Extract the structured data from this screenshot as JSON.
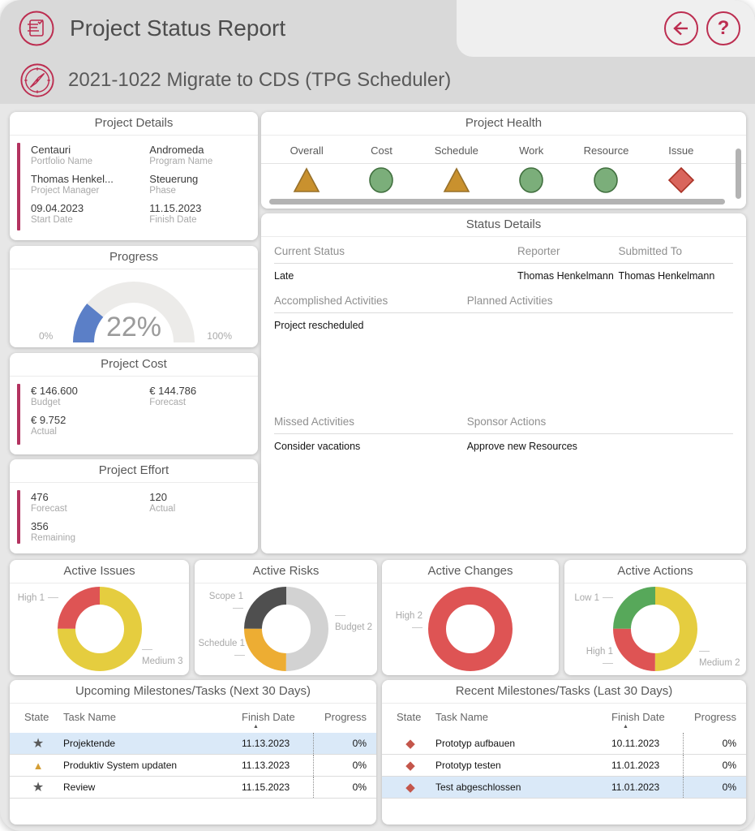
{
  "app": {
    "title": "Project Status Report",
    "subtitle": "2021-1022 Migrate to CDS (TPG Scheduler)",
    "accent_color": "#BC2D50"
  },
  "buttons": {
    "back": "back",
    "help_glyph": "?"
  },
  "cards": {
    "project_details": {
      "title": "Project Details",
      "fields": [
        {
          "value": "Centauri",
          "label": "Portfolio Name"
        },
        {
          "value": "Andromeda",
          "label": "Program Name"
        },
        {
          "value": "Thomas Henkel...",
          "label": "Project Manager"
        },
        {
          "value": "Steuerung",
          "label": "Phase"
        },
        {
          "value": "09.04.2023",
          "label": "Start Date"
        },
        {
          "value": "11.15.2023",
          "label": "Finish Date"
        }
      ]
    },
    "project_health": {
      "title": "Project Health",
      "items": [
        {
          "label": "Overall",
          "shape": "triangle"
        },
        {
          "label": "Cost",
          "shape": "circle"
        },
        {
          "label": "Schedule",
          "shape": "triangle"
        },
        {
          "label": "Work",
          "shape": "circle"
        },
        {
          "label": "Resource",
          "shape": "circle"
        },
        {
          "label": "Issue",
          "shape": "diamond"
        }
      ],
      "shape_colors": {
        "triangle": {
          "fill": "#C9912E",
          "stroke": "#97702A"
        },
        "circle": {
          "fill": "#7BAE7A",
          "stroke": "#41703F"
        },
        "diamond": {
          "fill": "#D9655C",
          "stroke": "#A93226"
        }
      }
    },
    "progress": {
      "title": "Progress",
      "percent": 22,
      "display": "22%",
      "min": "0%",
      "max": "100%",
      "fill_color": "#5B7FC7",
      "track_color": "#ECEBE9"
    },
    "project_cost": {
      "title": "Project Cost",
      "fields": [
        {
          "value": "€ 146.600",
          "label": "Budget"
        },
        {
          "value": "€ 144.786",
          "label": "Forecast"
        },
        {
          "value": "€ 9.752",
          "label": "Actual"
        }
      ]
    },
    "project_effort": {
      "title": "Project Effort",
      "fields": [
        {
          "value": "476",
          "label": "Forecast"
        },
        {
          "value": "120",
          "label": "Actual"
        },
        {
          "value": "356",
          "label": "Remaining"
        }
      ]
    },
    "status_details": {
      "title": "Status Details",
      "sections": [
        {
          "headers": [
            "Current Status",
            "Reporter",
            "Submitted To"
          ],
          "values": [
            "Late",
            "Thomas Henkelmann",
            "Thomas Henkelmann"
          ]
        },
        {
          "headers": [
            "Accomplished Activities",
            "Planned Activities"
          ],
          "values": [
            "Project rescheduled",
            ""
          ]
        },
        {
          "headers": [
            "Missed Activities",
            "Sponsor Actions"
          ],
          "values": [
            "Consider vacations",
            "Approve new Resources"
          ]
        }
      ]
    }
  },
  "donuts": [
    {
      "title": "Active Issues",
      "slices": [
        {
          "label": "Medium",
          "value": 3,
          "color": "#E5CD3F"
        },
        {
          "label": "High",
          "value": 1,
          "color": "#DE5454"
        }
      ],
      "callouts": [
        {
          "text": "High 1",
          "pos": "tl"
        },
        {
          "text": "Medium 3",
          "pos": "br"
        }
      ]
    },
    {
      "title": "Active Risks",
      "slices": [
        {
          "label": "Budget",
          "value": 2,
          "color": "#D2D2D2"
        },
        {
          "label": "Schedule",
          "value": 1,
          "color": "#EDAD33"
        },
        {
          "label": "Scope",
          "value": 1,
          "color": "#4F4F4F"
        }
      ],
      "callouts": [
        {
          "text": "Scope 1",
          "pos": "tl"
        },
        {
          "text": "Budget 2",
          "pos": "r"
        },
        {
          "text": "Schedule 1",
          "pos": "bl"
        }
      ]
    },
    {
      "title": "Active Changes",
      "slices": [
        {
          "label": "High",
          "value": 2,
          "color": "#DE5454"
        }
      ],
      "callouts": [
        {
          "text": "High 2",
          "pos": "l"
        }
      ]
    },
    {
      "title": "Active Actions",
      "slices": [
        {
          "label": "Medium",
          "value": 2,
          "color": "#E5CD3F"
        },
        {
          "label": "High",
          "value": 1,
          "color": "#DE5454"
        },
        {
          "label": "Low",
          "value": 1,
          "color": "#57A85A"
        }
      ],
      "callouts": [
        {
          "text": "Low 1",
          "pos": "tl"
        },
        {
          "text": "High 1",
          "pos": "bl"
        },
        {
          "text": "Medium 2",
          "pos": "br"
        }
      ]
    }
  ],
  "state_icons": {
    "star": {
      "glyph": "★",
      "color": "#595959"
    },
    "triangle": {
      "glyph": "▲",
      "color": "#D49E35"
    },
    "diamond": {
      "glyph": "◆",
      "color": "#C4564B"
    }
  },
  "tables": {
    "sort_glyph": "▲",
    "upcoming": {
      "title": "Upcoming Milestones/Tasks (Next 30 Days)",
      "columns": [
        "State",
        "Task Name",
        "Finish Date",
        "Progress"
      ],
      "rows": [
        {
          "state": "star",
          "task": "Projektende",
          "finish": "11.13.2023",
          "progress": "0%",
          "highlighted": true
        },
        {
          "state": "triangle",
          "task": "Produktiv System updaten",
          "finish": "11.13.2023",
          "progress": "0%",
          "highlighted": false
        },
        {
          "state": "star",
          "task": "Review",
          "finish": "11.15.2023",
          "progress": "0%",
          "highlighted": false
        }
      ]
    },
    "recent": {
      "title": "Recent Milestones/Tasks (Last 30 Days)",
      "columns": [
        "State",
        "Task Name",
        "Finish Date",
        "Progress"
      ],
      "rows": [
        {
          "state": "diamond",
          "task": "Prototyp aufbauen",
          "finish": "10.11.2023",
          "progress": "0%",
          "highlighted": false
        },
        {
          "state": "diamond",
          "task": "Prototyp testen",
          "finish": "11.01.2023",
          "progress": "0%",
          "highlighted": false
        },
        {
          "state": "diamond",
          "task": "Test abgeschlossen",
          "finish": "11.01.2023",
          "progress": "0%",
          "highlighted": true
        }
      ]
    }
  },
  "colors": {
    "row_highlight": "#DAE9F8",
    "accent_bar": "#B33360",
    "header_band": "#D9D9D9",
    "header_right": "#EFEFEF"
  }
}
